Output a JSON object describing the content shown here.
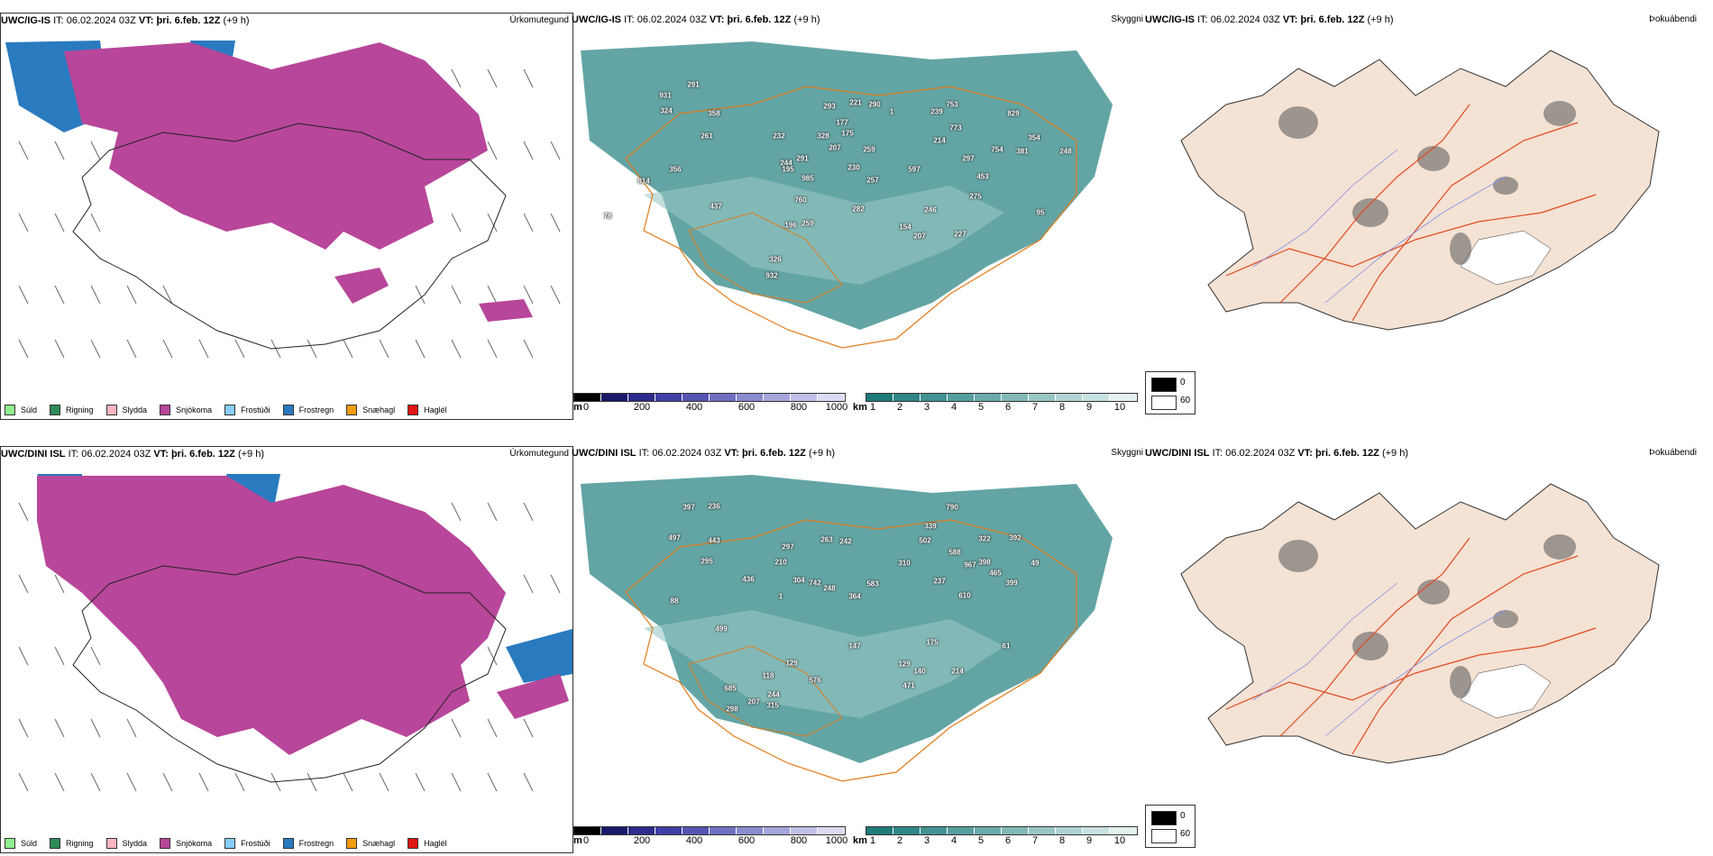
{
  "rows": [
    {
      "model": "UWC/IG-IS",
      "it_label": "IT:",
      "it_value": "06.02.2024 03Z",
      "vt_label": "VT:",
      "vt_value": "þri. 6.feb. 12Z",
      "lead": "(+9 h)",
      "precip_title": "Úrkomutegund",
      "visibility_title": "Skyggni",
      "fog_title": "Þokuábendi",
      "visibility_labels": [
        "931",
        "291",
        "358",
        "324",
        "261",
        "356",
        "244",
        "985",
        "293",
        "177",
        "290",
        "221",
        "1",
        "232",
        "175",
        "328",
        "259",
        "207",
        "829",
        "753",
        "773",
        "239",
        "214",
        "754",
        "291",
        "195",
        "230",
        "257",
        "597",
        "297",
        "381",
        "354",
        "248",
        "814",
        "437",
        "760",
        "453",
        "275",
        "246",
        "282",
        "196",
        "259",
        "227",
        "207",
        "154",
        "326",
        "932",
        "95",
        "78"
      ]
    },
    {
      "model": "UWC/DINI ISL",
      "it_label": "IT:",
      "it_value": "06.02.2024 03Z",
      "vt_label": "VT:",
      "vt_value": "þri. 6.feb. 12Z",
      "lead": "(+9 h)",
      "precip_title": "Úrkomutegund",
      "visibility_title": "Skyggni",
      "fog_title": "Þokuábendi",
      "visibility_labels": [
        "397",
        "236",
        "497",
        "443",
        "295",
        "297",
        "210",
        "263",
        "242",
        "790",
        "339",
        "322",
        "392",
        "588",
        "310",
        "502",
        "967",
        "398",
        "465",
        "399",
        "49",
        "88",
        "436",
        "304",
        "248",
        "1",
        "364",
        "583",
        "237",
        "610",
        "499",
        "742",
        "147",
        "175",
        "61",
        "129",
        "118",
        "576",
        "129",
        "140",
        "471",
        "214",
        "244",
        "685",
        "207",
        "315",
        "298"
      ]
    }
  ],
  "precip_legend": [
    {
      "label": "Súld",
      "color": "#90ee90"
    },
    {
      "label": "Rigning",
      "color": "#2e8b57"
    },
    {
      "label": "Slydda",
      "color": "#ffb6c1"
    },
    {
      "label": "Snjókoma",
      "color": "#b8469a"
    },
    {
      "label": "Frostúði",
      "color": "#87cefa"
    },
    {
      "label": "Frostregn",
      "color": "#2a7abf"
    },
    {
      "label": "Snæhagl",
      "color": "#f39c12"
    },
    {
      "label": "Haglél",
      "color": "#e31414"
    }
  ],
  "visibility_m_scale": {
    "unit": "m",
    "ticks": [
      "0",
      "200",
      "400",
      "600",
      "800",
      "1000"
    ],
    "colors": [
      "#000000",
      "#19196a",
      "#2c2c8c",
      "#3f3fa6",
      "#5555b3",
      "#6f6fc2",
      "#8a8acf",
      "#a5a5dc",
      "#c0c0e8",
      "#dadaf3"
    ]
  },
  "visibility_km_scale": {
    "unit": "km",
    "ticks": [
      "1",
      "2",
      "3",
      "4",
      "5",
      "6",
      "7",
      "8",
      "9",
      "10"
    ],
    "colors": [
      "#1e7b78",
      "#2f8785",
      "#429392",
      "#569f9e",
      "#6babaa",
      "#82b9b7",
      "#98c6c5",
      "#b0d4d3",
      "#c8e2e1",
      "#e2f0ef"
    ]
  },
  "fog_legend": [
    {
      "label": "0",
      "color": "#000000"
    },
    {
      "label": "60",
      "color": "#ffffff"
    }
  ]
}
